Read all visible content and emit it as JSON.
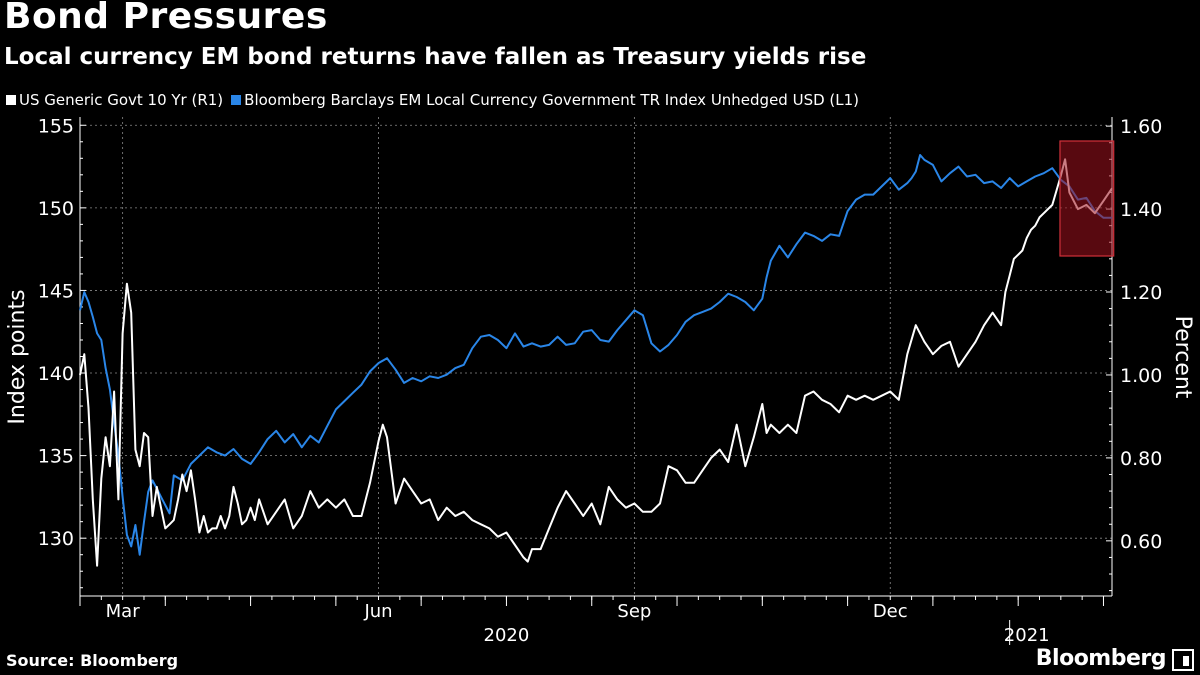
{
  "header": {
    "title": "Bond Pressures",
    "subtitle": "Local currency EM bond returns have fallen as Treasury yields rise"
  },
  "legend": [
    {
      "label": "US Generic Govt 10 Yr  (R1)",
      "color": "#ffffff"
    },
    {
      "label": "Bloomberg Barclays EM Local Currency Government TR Index Unhedged USD  (L1)",
      "color": "#2a86e8"
    }
  ],
  "footer": {
    "source": "Source: Bloomberg",
    "brand": "Bloomberg"
  },
  "chart_data": {
    "type": "line",
    "title": "Bond Pressures",
    "xlabel": "",
    "ylabel_left": "Index points",
    "ylabel_right": "Percent",
    "x_range": [
      0,
      12.1
    ],
    "ylim_left": [
      126.5,
      155.5
    ],
    "ylim_right": [
      0.467,
      1.622
    ],
    "left_ticks": [
      130,
      135,
      140,
      145,
      150,
      155
    ],
    "right_ticks": [
      "0.60",
      "0.80",
      "1.00",
      "1.20",
      "1.40",
      "1.60"
    ],
    "right_tick_values": [
      0.6,
      0.8,
      1.0,
      1.2,
      1.4,
      1.6
    ],
    "month_ticks": [
      {
        "label": "Mar",
        "pos": 0.5
      },
      {
        "label": "Jun",
        "pos": 3.5
      },
      {
        "label": "Sep",
        "pos": 6.5
      },
      {
        "label": "Dec",
        "pos": 9.5
      }
    ],
    "year_labels": [
      {
        "label": "2020",
        "pos": 5.0
      },
      {
        "label": "2021",
        "pos": 11.1
      }
    ],
    "highlight": {
      "x_start": 11.49,
      "x_end": 12.12,
      "y_top": 0,
      "y_bottom": 0,
      "color": "#a0101e"
    },
    "series": [
      {
        "name": "Bloomberg Barclays EM Local Currency Government TR Index Unhedged USD (L1)",
        "axis": "left",
        "color": "#2a86e8",
        "points": [
          [
            0,
            143.8
          ],
          [
            0.05,
            144.9
          ],
          [
            0.1,
            144.3
          ],
          [
            0.15,
            143.4
          ],
          [
            0.2,
            142.4
          ],
          [
            0.25,
            142.0
          ],
          [
            0.3,
            140.3
          ],
          [
            0.35,
            139.0
          ],
          [
            0.4,
            137.0
          ],
          [
            0.45,
            135.0
          ],
          [
            0.5,
            132.5
          ],
          [
            0.55,
            130.2
          ],
          [
            0.6,
            129.5
          ],
          [
            0.65,
            130.8
          ],
          [
            0.7,
            129.0
          ],
          [
            0.75,
            131.0
          ],
          [
            0.8,
            132.8
          ],
          [
            0.85,
            133.5
          ],
          [
            0.9,
            133.0
          ],
          [
            0.95,
            132.5
          ],
          [
            1.0,
            132.0
          ],
          [
            1.05,
            131.5
          ],
          [
            1.1,
            133.8
          ],
          [
            1.2,
            133.5
          ],
          [
            1.3,
            134.5
          ],
          [
            1.4,
            135.0
          ],
          [
            1.5,
            135.5
          ],
          [
            1.6,
            135.2
          ],
          [
            1.7,
            135.0
          ],
          [
            1.8,
            135.4
          ],
          [
            1.9,
            134.8
          ],
          [
            2.0,
            134.5
          ],
          [
            2.1,
            135.2
          ],
          [
            2.2,
            136.0
          ],
          [
            2.3,
            136.5
          ],
          [
            2.4,
            135.8
          ],
          [
            2.5,
            136.3
          ],
          [
            2.6,
            135.5
          ],
          [
            2.7,
            136.2
          ],
          [
            2.8,
            135.8
          ],
          [
            2.9,
            136.8
          ],
          [
            3.0,
            137.8
          ],
          [
            3.1,
            138.3
          ],
          [
            3.2,
            138.8
          ],
          [
            3.3,
            139.3
          ],
          [
            3.4,
            140.1
          ],
          [
            3.5,
            140.6
          ],
          [
            3.6,
            140.9
          ],
          [
            3.7,
            140.2
          ],
          [
            3.8,
            139.4
          ],
          [
            3.9,
            139.7
          ],
          [
            4.0,
            139.5
          ],
          [
            4.1,
            139.8
          ],
          [
            4.2,
            139.7
          ],
          [
            4.3,
            139.9
          ],
          [
            4.4,
            140.3
          ],
          [
            4.5,
            140.5
          ],
          [
            4.6,
            141.5
          ],
          [
            4.7,
            142.2
          ],
          [
            4.8,
            142.3
          ],
          [
            4.9,
            142.0
          ],
          [
            5.0,
            141.5
          ],
          [
            5.1,
            142.4
          ],
          [
            5.2,
            141.6
          ],
          [
            5.3,
            141.8
          ],
          [
            5.4,
            141.6
          ],
          [
            5.5,
            141.7
          ],
          [
            5.6,
            142.2
          ],
          [
            5.7,
            141.7
          ],
          [
            5.8,
            141.8
          ],
          [
            5.9,
            142.5
          ],
          [
            6.0,
            142.6
          ],
          [
            6.1,
            142.0
          ],
          [
            6.2,
            141.9
          ],
          [
            6.3,
            142.6
          ],
          [
            6.4,
            143.2
          ],
          [
            6.5,
            143.8
          ],
          [
            6.6,
            143.5
          ],
          [
            6.7,
            141.8
          ],
          [
            6.8,
            141.3
          ],
          [
            6.9,
            141.7
          ],
          [
            7.0,
            142.3
          ],
          [
            7.1,
            143.1
          ],
          [
            7.2,
            143.5
          ],
          [
            7.3,
            143.7
          ],
          [
            7.4,
            143.9
          ],
          [
            7.5,
            144.3
          ],
          [
            7.6,
            144.8
          ],
          [
            7.7,
            144.6
          ],
          [
            7.8,
            144.3
          ],
          [
            7.9,
            143.8
          ],
          [
            8.0,
            144.5
          ],
          [
            8.05,
            145.8
          ],
          [
            8.1,
            146.8
          ],
          [
            8.2,
            147.7
          ],
          [
            8.3,
            147.0
          ],
          [
            8.4,
            147.8
          ],
          [
            8.5,
            148.5
          ],
          [
            8.6,
            148.3
          ],
          [
            8.7,
            148.0
          ],
          [
            8.8,
            148.4
          ],
          [
            8.9,
            148.3
          ],
          [
            9.0,
            149.8
          ],
          [
            9.1,
            150.5
          ],
          [
            9.2,
            150.8
          ],
          [
            9.3,
            150.8
          ],
          [
            9.4,
            151.3
          ],
          [
            9.5,
            151.8
          ],
          [
            9.6,
            151.1
          ],
          [
            9.7,
            151.5
          ],
          [
            9.75,
            151.8
          ],
          [
            9.8,
            152.2
          ],
          [
            9.85,
            153.2
          ],
          [
            9.9,
            152.9
          ],
          [
            10.0,
            152.6
          ],
          [
            10.1,
            151.6
          ],
          [
            10.2,
            152.1
          ],
          [
            10.3,
            152.5
          ],
          [
            10.4,
            151.9
          ],
          [
            10.5,
            152.0
          ],
          [
            10.6,
            151.5
          ],
          [
            10.7,
            151.6
          ],
          [
            10.8,
            151.2
          ],
          [
            10.9,
            151.8
          ],
          [
            11.0,
            151.3
          ],
          [
            11.1,
            151.6
          ],
          [
            11.2,
            151.9
          ],
          [
            11.3,
            152.1
          ],
          [
            11.4,
            152.4
          ],
          [
            11.5,
            151.7
          ],
          [
            11.6,
            151.3
          ],
          [
            11.7,
            150.5
          ],
          [
            11.8,
            150.6
          ],
          [
            11.9,
            149.8
          ],
          [
            12.0,
            149.4
          ],
          [
            12.1,
            149.4
          ]
        ]
      },
      {
        "name": "US Generic Govt 10 Yr (R1)",
        "axis": "right",
        "color": "#ffffff",
        "points": [
          [
            0,
            1.0
          ],
          [
            0.05,
            1.05
          ],
          [
            0.1,
            0.92
          ],
          [
            0.15,
            0.7
          ],
          [
            0.2,
            0.54
          ],
          [
            0.25,
            0.75
          ],
          [
            0.3,
            0.85
          ],
          [
            0.35,
            0.78
          ],
          [
            0.4,
            0.96
          ],
          [
            0.45,
            0.7
          ],
          [
            0.5,
            1.1
          ],
          [
            0.55,
            1.22
          ],
          [
            0.6,
            1.15
          ],
          [
            0.65,
            0.82
          ],
          [
            0.7,
            0.78
          ],
          [
            0.75,
            0.86
          ],
          [
            0.8,
            0.85
          ],
          [
            0.85,
            0.66
          ],
          [
            0.9,
            0.73
          ],
          [
            0.95,
            0.68
          ],
          [
            1.0,
            0.63
          ],
          [
            1.05,
            0.64
          ],
          [
            1.1,
            0.65
          ],
          [
            1.15,
            0.7
          ],
          [
            1.2,
            0.76
          ],
          [
            1.25,
            0.72
          ],
          [
            1.3,
            0.77
          ],
          [
            1.35,
            0.7
          ],
          [
            1.4,
            0.62
          ],
          [
            1.45,
            0.66
          ],
          [
            1.5,
            0.62
          ],
          [
            1.55,
            0.63
          ],
          [
            1.6,
            0.63
          ],
          [
            1.65,
            0.66
          ],
          [
            1.7,
            0.63
          ],
          [
            1.75,
            0.66
          ],
          [
            1.8,
            0.73
          ],
          [
            1.85,
            0.69
          ],
          [
            1.9,
            0.64
          ],
          [
            1.95,
            0.65
          ],
          [
            2.0,
            0.68
          ],
          [
            2.05,
            0.65
          ],
          [
            2.1,
            0.7
          ],
          [
            2.2,
            0.64
          ],
          [
            2.3,
            0.67
          ],
          [
            2.4,
            0.7
          ],
          [
            2.5,
            0.63
          ],
          [
            2.6,
            0.66
          ],
          [
            2.7,
            0.72
          ],
          [
            2.8,
            0.68
          ],
          [
            2.9,
            0.7
          ],
          [
            3.0,
            0.68
          ],
          [
            3.1,
            0.7
          ],
          [
            3.2,
            0.66
          ],
          [
            3.3,
            0.66
          ],
          [
            3.4,
            0.74
          ],
          [
            3.5,
            0.84
          ],
          [
            3.55,
            0.88
          ],
          [
            3.6,
            0.85
          ],
          [
            3.7,
            0.69
          ],
          [
            3.8,
            0.75
          ],
          [
            3.9,
            0.72
          ],
          [
            4.0,
            0.69
          ],
          [
            4.1,
            0.7
          ],
          [
            4.2,
            0.65
          ],
          [
            4.3,
            0.68
          ],
          [
            4.4,
            0.66
          ],
          [
            4.5,
            0.67
          ],
          [
            4.6,
            0.65
          ],
          [
            4.7,
            0.64
          ],
          [
            4.8,
            0.63
          ],
          [
            4.9,
            0.61
          ],
          [
            5.0,
            0.62
          ],
          [
            5.1,
            0.59
          ],
          [
            5.2,
            0.56
          ],
          [
            5.25,
            0.55
          ],
          [
            5.3,
            0.58
          ],
          [
            5.4,
            0.58
          ],
          [
            5.5,
            0.63
          ],
          [
            5.6,
            0.68
          ],
          [
            5.7,
            0.72
          ],
          [
            5.8,
            0.69
          ],
          [
            5.9,
            0.66
          ],
          [
            6.0,
            0.69
          ],
          [
            6.1,
            0.64
          ],
          [
            6.2,
            0.73
          ],
          [
            6.3,
            0.7
          ],
          [
            6.4,
            0.68
          ],
          [
            6.5,
            0.69
          ],
          [
            6.6,
            0.67
          ],
          [
            6.7,
            0.67
          ],
          [
            6.8,
            0.69
          ],
          [
            6.9,
            0.78
          ],
          [
            7.0,
            0.77
          ],
          [
            7.1,
            0.74
          ],
          [
            7.2,
            0.74
          ],
          [
            7.3,
            0.77
          ],
          [
            7.4,
            0.8
          ],
          [
            7.5,
            0.82
          ],
          [
            7.6,
            0.79
          ],
          [
            7.7,
            0.88
          ],
          [
            7.8,
            0.78
          ],
          [
            7.9,
            0.85
          ],
          [
            8.0,
            0.93
          ],
          [
            8.05,
            0.86
          ],
          [
            8.1,
            0.88
          ],
          [
            8.2,
            0.86
          ],
          [
            8.3,
            0.88
          ],
          [
            8.4,
            0.86
          ],
          [
            8.5,
            0.95
          ],
          [
            8.6,
            0.96
          ],
          [
            8.7,
            0.94
          ],
          [
            8.8,
            0.93
          ],
          [
            8.9,
            0.91
          ],
          [
            9.0,
            0.95
          ],
          [
            9.1,
            0.94
          ],
          [
            9.2,
            0.95
          ],
          [
            9.3,
            0.94
          ],
          [
            9.4,
            0.95
          ],
          [
            9.5,
            0.96
          ],
          [
            9.6,
            0.94
          ],
          [
            9.7,
            1.05
          ],
          [
            9.8,
            1.12
          ],
          [
            9.9,
            1.08
          ],
          [
            10.0,
            1.05
          ],
          [
            10.1,
            1.07
          ],
          [
            10.2,
            1.08
          ],
          [
            10.3,
            1.02
          ],
          [
            10.4,
            1.05
          ],
          [
            10.5,
            1.08
          ],
          [
            10.6,
            1.12
          ],
          [
            10.7,
            1.15
          ],
          [
            10.8,
            1.12
          ],
          [
            10.85,
            1.2
          ],
          [
            10.9,
            1.24
          ],
          [
            10.95,
            1.28
          ],
          [
            11.0,
            1.29
          ],
          [
            11.05,
            1.3
          ],
          [
            11.1,
            1.33
          ],
          [
            11.15,
            1.35
          ],
          [
            11.2,
            1.36
          ],
          [
            11.25,
            1.38
          ],
          [
            11.3,
            1.39
          ],
          [
            11.4,
            1.41
          ],
          [
            11.5,
            1.48
          ],
          [
            11.55,
            1.52
          ],
          [
            11.6,
            1.44
          ],
          [
            11.7,
            1.4
          ],
          [
            11.8,
            1.41
          ],
          [
            11.9,
            1.39
          ],
          [
            12.0,
            1.42
          ],
          [
            12.1,
            1.45
          ]
        ]
      }
    ]
  }
}
